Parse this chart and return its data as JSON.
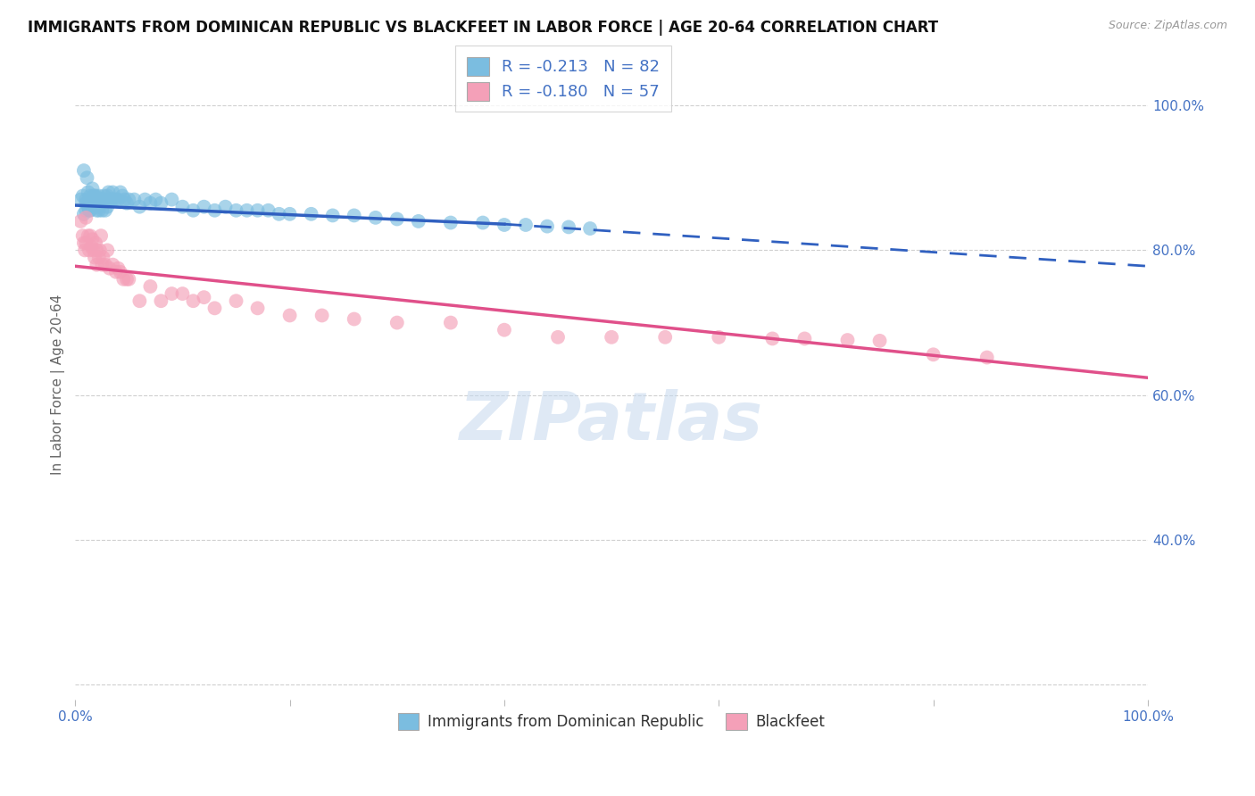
{
  "title": "IMMIGRANTS FROM DOMINICAN REPUBLIC VS BLACKFEET IN LABOR FORCE | AGE 20-64 CORRELATION CHART",
  "source": "Source: ZipAtlas.com",
  "ylabel": "In Labor Force | Age 20-64",
  "xlim": [
    0.0,
    1.0
  ],
  "ylim": [
    0.18,
    1.05
  ],
  "yticks": [
    0.2,
    0.4,
    0.6,
    0.8,
    1.0
  ],
  "ytick_labels": [
    "",
    "40.0%",
    "60.0%",
    "80.0%",
    "100.0%"
  ],
  "xticks": [
    0.0,
    0.2,
    0.4,
    0.6,
    0.8,
    1.0
  ],
  "xtick_labels": [
    "0.0%",
    "",
    "",
    "",
    "",
    "100.0%"
  ],
  "blue_R": -0.213,
  "blue_N": 82,
  "pink_R": -0.18,
  "pink_N": 57,
  "blue_color": "#7bbde0",
  "pink_color": "#f4a0b8",
  "blue_line_color": "#3060c0",
  "pink_line_color": "#e0508a",
  "legend_label_blue": "Immigrants from Dominican Republic",
  "legend_label_pink": "Blackfeet",
  "watermark": "ZIPatlas",
  "title_fontsize": 12,
  "axis_label_color": "#4472c4",
  "blue_trend_y_start": 0.862,
  "blue_trend_y_at040": 0.836,
  "blue_trend_y_end": 0.778,
  "pink_trend_y_start": 0.778,
  "pink_trend_y_end": 0.624,
  "blue_scatter_x": [
    0.005,
    0.007,
    0.008,
    0.008,
    0.01,
    0.01,
    0.01,
    0.011,
    0.012,
    0.012,
    0.013,
    0.013,
    0.014,
    0.014,
    0.015,
    0.015,
    0.016,
    0.016,
    0.017,
    0.018,
    0.018,
    0.019,
    0.02,
    0.02,
    0.021,
    0.021,
    0.022,
    0.022,
    0.023,
    0.024,
    0.025,
    0.025,
    0.026,
    0.027,
    0.028,
    0.028,
    0.03,
    0.03,
    0.031,
    0.032,
    0.033,
    0.034,
    0.035,
    0.036,
    0.038,
    0.04,
    0.042,
    0.044,
    0.046,
    0.048,
    0.05,
    0.055,
    0.06,
    0.065,
    0.07,
    0.075,
    0.08,
    0.09,
    0.1,
    0.11,
    0.12,
    0.13,
    0.14,
    0.15,
    0.16,
    0.17,
    0.18,
    0.19,
    0.2,
    0.22,
    0.24,
    0.26,
    0.28,
    0.3,
    0.32,
    0.35,
    0.38,
    0.4,
    0.42,
    0.44,
    0.46,
    0.48
  ],
  "blue_scatter_y": [
    0.87,
    0.875,
    0.91,
    0.85,
    0.865,
    0.87,
    0.855,
    0.9,
    0.88,
    0.86,
    0.87,
    0.855,
    0.875,
    0.855,
    0.87,
    0.86,
    0.885,
    0.87,
    0.875,
    0.875,
    0.86,
    0.875,
    0.87,
    0.855,
    0.86,
    0.87,
    0.875,
    0.855,
    0.865,
    0.87,
    0.87,
    0.855,
    0.87,
    0.875,
    0.87,
    0.855,
    0.875,
    0.86,
    0.88,
    0.87,
    0.87,
    0.87,
    0.88,
    0.87,
    0.87,
    0.87,
    0.88,
    0.875,
    0.87,
    0.865,
    0.87,
    0.87,
    0.86,
    0.87,
    0.865,
    0.87,
    0.865,
    0.87,
    0.86,
    0.855,
    0.86,
    0.855,
    0.86,
    0.855,
    0.855,
    0.855,
    0.855,
    0.85,
    0.85,
    0.85,
    0.848,
    0.848,
    0.845,
    0.843,
    0.84,
    0.838,
    0.838,
    0.835,
    0.835,
    0.833,
    0.832,
    0.83
  ],
  "pink_scatter_x": [
    0.005,
    0.007,
    0.008,
    0.009,
    0.01,
    0.01,
    0.012,
    0.013,
    0.014,
    0.015,
    0.016,
    0.017,
    0.018,
    0.019,
    0.02,
    0.02,
    0.022,
    0.023,
    0.024,
    0.025,
    0.026,
    0.028,
    0.03,
    0.032,
    0.035,
    0.038,
    0.04,
    0.042,
    0.045,
    0.048,
    0.05,
    0.06,
    0.07,
    0.08,
    0.09,
    0.1,
    0.11,
    0.12,
    0.13,
    0.15,
    0.17,
    0.2,
    0.23,
    0.26,
    0.3,
    0.35,
    0.4,
    0.45,
    0.5,
    0.55,
    0.6,
    0.65,
    0.68,
    0.72,
    0.75,
    0.8,
    0.85
  ],
  "pink_scatter_y": [
    0.84,
    0.82,
    0.81,
    0.8,
    0.845,
    0.81,
    0.82,
    0.8,
    0.82,
    0.805,
    0.815,
    0.8,
    0.79,
    0.81,
    0.78,
    0.8,
    0.79,
    0.8,
    0.82,
    0.78,
    0.79,
    0.78,
    0.8,
    0.775,
    0.78,
    0.77,
    0.775,
    0.77,
    0.76,
    0.76,
    0.76,
    0.73,
    0.75,
    0.73,
    0.74,
    0.74,
    0.73,
    0.735,
    0.72,
    0.73,
    0.72,
    0.71,
    0.71,
    0.705,
    0.7,
    0.7,
    0.69,
    0.68,
    0.68,
    0.68,
    0.68,
    0.678,
    0.678,
    0.676,
    0.675,
    0.656,
    0.652
  ]
}
